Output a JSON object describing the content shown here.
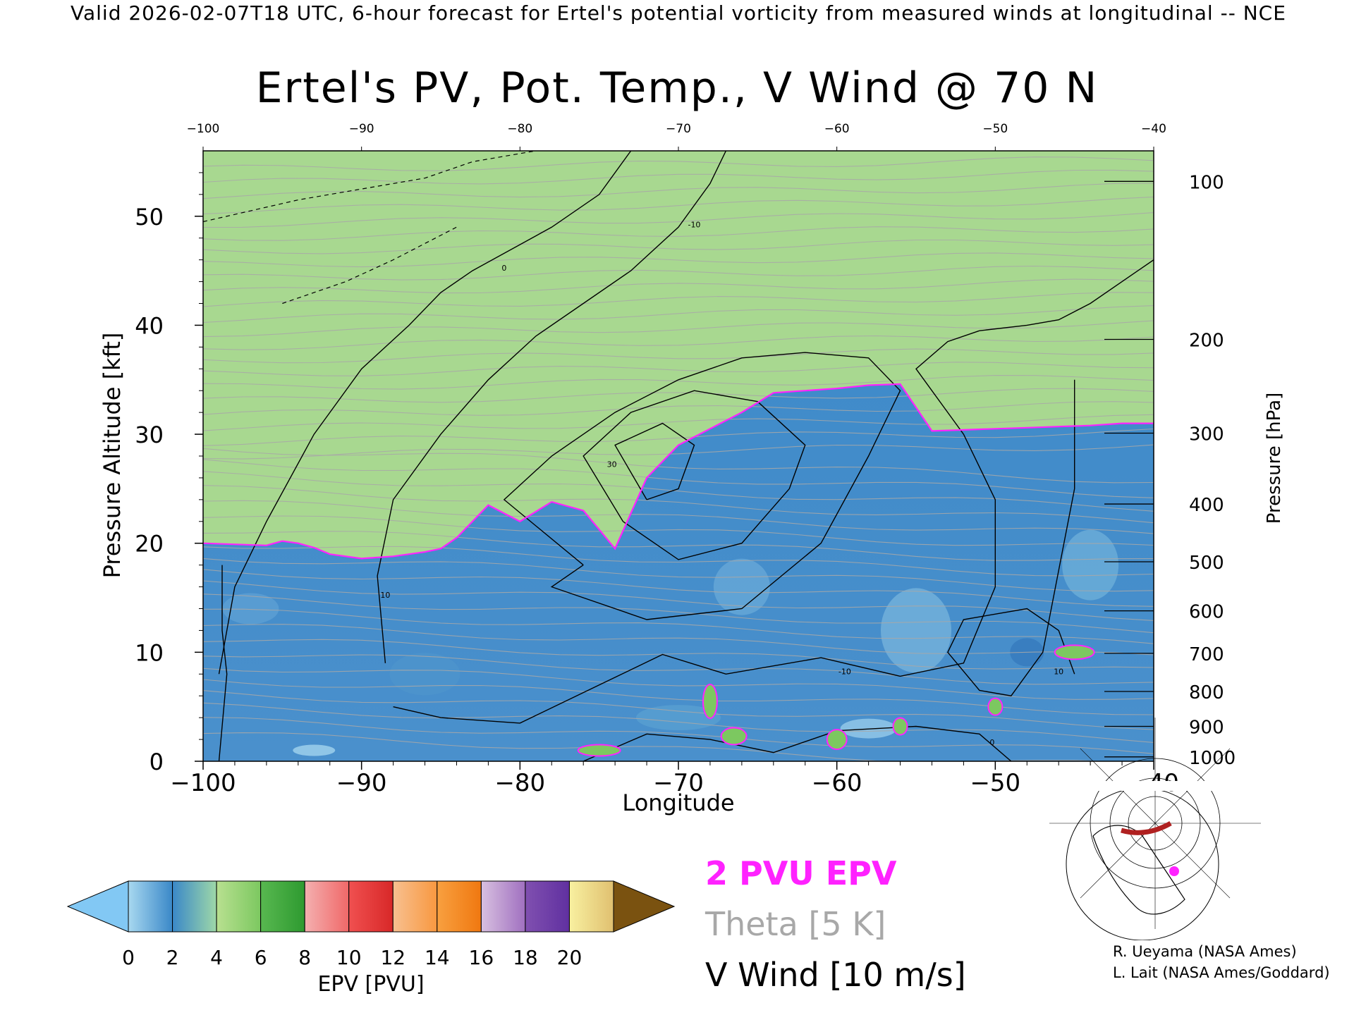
{
  "header": "Valid 2026-02-07T18 UTC, 6-hour forecast for Ertel's potential vorticity from measured winds at longitudinal -- NCE",
  "chart_data": {
    "type": "heatmap",
    "title": "Ertel's PV, Pot. Temp., V Wind @ 70 N",
    "xlabel": "Longitude",
    "ylabel": "Pressure Altitude [kft]",
    "y2label": "Pressure [hPa]",
    "x_ticks": [
      "−100",
      "−90",
      "−80",
      "−70",
      "−60",
      "−50",
      "−40"
    ],
    "top_ticks": [
      "−100",
      "−90",
      "−80",
      "−70",
      "−60",
      "−50",
      "−40"
    ],
    "y_ticks": [
      "0",
      "10",
      "20",
      "30",
      "40",
      "50"
    ],
    "pressure_ticks": [
      {
        "label": "100",
        "kft": 53.2
      },
      {
        "label": "200",
        "kft": 38.7
      },
      {
        "label": "300",
        "kft": 30.1
      },
      {
        "label": "400",
        "kft": 23.6
      },
      {
        "label": "500",
        "kft": 18.3
      },
      {
        "label": "600",
        "kft": 13.8
      },
      {
        "label": "700",
        "kft": 9.9
      },
      {
        "label": "800",
        "kft": 6.4
      },
      {
        "label": "900",
        "kft": 3.2
      },
      {
        "label": "1000",
        "kft": 0.4
      }
    ],
    "xlim": [
      -100,
      -40
    ],
    "ylim": [
      0,
      56
    ],
    "colorbar": {
      "label": "EPV [PVU]",
      "ticks": [
        "0",
        "2",
        "4",
        "6",
        "8",
        "10",
        "12",
        "14",
        "16",
        "18",
        "20"
      ],
      "under_color": "#82c8f4",
      "over_color": "#7a5210",
      "segments": [
        [
          "#a8d8f0",
          "#3a88c8"
        ],
        [
          "#3a88c8",
          "#9ed8a8"
        ],
        [
          "#b8e090",
          "#7cc860"
        ],
        [
          "#58b850",
          "#2e9a30"
        ],
        [
          "#f4b0b0",
          "#f06868"
        ],
        [
          "#f05050",
          "#d82828"
        ],
        [
          "#f8c090",
          "#f89840"
        ],
        [
          "#f8a040",
          "#f07810"
        ],
        [
          "#d8c0e0",
          "#a070c0"
        ],
        [
          "#8050b0",
          "#6030a0"
        ],
        [
          "#f8f0a0",
          "#e0c070"
        ]
      ]
    },
    "pv_profile": {
      "x": [
        -100,
        -96,
        -95,
        -94,
        -93,
        -92,
        -90,
        -88,
        -86,
        -85,
        -84,
        -82,
        -80,
        -78,
        -76,
        -74,
        -72,
        -70,
        -68,
        -66,
        -64,
        -62,
        -60,
        -58,
        -56,
        -54,
        -52,
        -50,
        -48,
        -46,
        -44,
        -42,
        -40
      ],
      "trop_2pvu": [
        20,
        19.8,
        20.2,
        20.0,
        19.6,
        19.0,
        18.6,
        18.8,
        19.2,
        19.5,
        20.5,
        23.5,
        22.0,
        23.8,
        23.0,
        19.5,
        26.0,
        29.0,
        30.5,
        32.0,
        33.8,
        34.0,
        34.2,
        34.5,
        34.6,
        30.3,
        30.4,
        30.5,
        30.6,
        30.7,
        30.8,
        31.0,
        31.0
      ],
      "strat_top": [
        56,
        52,
        56,
        54,
        52,
        56,
        54,
        52,
        54,
        56,
        55,
        52,
        53,
        54,
        56,
        55,
        52,
        53,
        56,
        55,
        53,
        52,
        54,
        55,
        54,
        53,
        53,
        52,
        53,
        53,
        53,
        52,
        53
      ]
    },
    "v_wind": {
      "contour_interval": "10 m/s",
      "labels": [
        "0",
        "10",
        "30",
        "-10",
        "-10",
        "0",
        "10"
      ]
    },
    "theta": {
      "interval": "5 K"
    }
  },
  "key": {
    "pvu": "2 PVU EPV",
    "theta": "Theta [5 K]",
    "vwind": "V Wind [10 m/s]"
  },
  "credits": [
    "R. Ueyama (NASA Ames)",
    "L. Lait (NASA Ames/Goddard)"
  ],
  "colors": {
    "pvu_line": "#ff22ff",
    "theta_line": "#a8a8a8",
    "wind_line": "#000000"
  }
}
